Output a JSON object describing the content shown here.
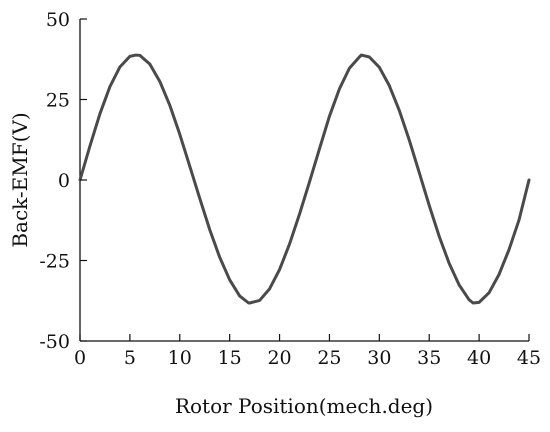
{
  "colors": {
    "series": "#4a4a4a",
    "axis": "#111111",
    "background": "#ffffff"
  },
  "chart_data": {
    "type": "line",
    "title": "",
    "xlabel": "Rotor Position(mech.deg)",
    "ylabel": "Back-EMF(V)",
    "xlim": [
      0,
      45
    ],
    "ylim": [
      -50,
      50
    ],
    "xticks": [
      0,
      5,
      10,
      15,
      20,
      25,
      30,
      35,
      40,
      45
    ],
    "yticks": [
      -50,
      -25,
      0,
      25,
      50
    ],
    "xtick_labels": [
      "0",
      "5",
      "10",
      "15",
      "20",
      "25",
      "30",
      "35",
      "40",
      "45"
    ],
    "ytick_labels": [
      "-50",
      "-25",
      "0",
      "25",
      "50"
    ],
    "grid": false,
    "legend": "none",
    "series": [
      {
        "x": [
          0,
          1,
          2,
          3,
          4,
          5,
          5.6,
          6,
          7,
          8,
          9,
          10,
          11,
          12,
          13,
          14,
          15,
          16,
          16.9,
          17,
          18,
          19,
          20,
          21,
          22,
          23,
          24,
          25,
          26,
          27,
          28,
          28.2,
          29,
          30,
          31,
          32,
          33,
          34,
          35,
          36,
          37,
          38,
          39,
          39.4,
          40,
          41,
          42,
          43,
          44,
          45
        ],
        "y": [
          0,
          10.6,
          20.6,
          29.0,
          35.1,
          38.4,
          38.8,
          38.7,
          36.0,
          30.6,
          23.2,
          14.2,
          4.3,
          -5.7,
          -15.4,
          -24.0,
          -31.0,
          -36.0,
          -38.2,
          -38.2,
          -37.4,
          -33.8,
          -27.8,
          -19.9,
          -10.6,
          -0.6,
          9.7,
          19.8,
          28.3,
          34.7,
          38.2,
          38.8,
          38.2,
          35.0,
          29.3,
          21.6,
          12.4,
          2.3,
          -7.9,
          -17.5,
          -25.9,
          -32.6,
          -37.2,
          -38.2,
          -38.0,
          -35.0,
          -29.3,
          -21.6,
          -12.4,
          0
        ]
      }
    ]
  }
}
